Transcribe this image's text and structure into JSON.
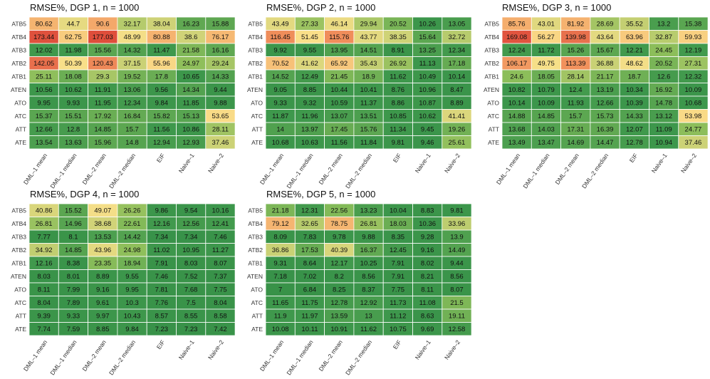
{
  "chart_data": [
    {
      "type": "heatmap",
      "title": "RMSE%, DGP 1, n = 1000",
      "rows": [
        "ATB5",
        "ATB4",
        "ATB3",
        "ATB2",
        "ATB1",
        "ATEN",
        "ATO",
        "ATC",
        "ATT",
        "ATE"
      ],
      "columns": [
        "DML–1 mean",
        "DML–1 median",
        "DML–2 mean",
        "DML–2 median",
        "EIF",
        "Naive–1",
        "Naive–2"
      ],
      "values": [
        [
          80.62,
          44.7,
          90.6,
          32.17,
          38.04,
          16.23,
          15.88
        ],
        [
          173.44,
          62.75,
          177.03,
          48.99,
          80.88,
          38.6,
          76.17
        ],
        [
          12.02,
          11.98,
          15.56,
          14.32,
          11.47,
          21.58,
          16.16
        ],
        [
          142.05,
          50.39,
          120.43,
          37.15,
          55.96,
          24.97,
          29.24
        ],
        [
          25.11,
          18.08,
          29.3,
          19.52,
          17.8,
          10.65,
          14.33
        ],
        [
          10.56,
          10.62,
          11.91,
          13.06,
          9.56,
          14.34,
          9.44
        ],
        [
          9.95,
          9.93,
          11.95,
          12.34,
          9.84,
          11.85,
          9.88
        ],
        [
          15.37,
          15.51,
          17.92,
          16.84,
          15.82,
          15.13,
          53.65
        ],
        [
          12.66,
          12.8,
          14.85,
          15.7,
          11.56,
          10.86,
          28.11
        ],
        [
          13.54,
          13.63,
          15.96,
          14.8,
          12.94,
          12.93,
          37.46
        ]
      ]
    },
    {
      "type": "heatmap",
      "title": "RMSE%, DGP 2, n = 1000",
      "rows": [
        "ATB5",
        "ATB4",
        "ATB3",
        "ATB2",
        "ATB1",
        "ATEN",
        "ATO",
        "ATC",
        "ATT",
        "ATE"
      ],
      "columns": [
        "DML–1 mean",
        "DML–1 median",
        "DML–2 mean",
        "DML–2 median",
        "EIF",
        "Naive–1",
        "Naive–2"
      ],
      "values": [
        [
          43.49,
          27.33,
          46.14,
          29.94,
          20.52,
          10.26,
          13.05
        ],
        [
          116.45,
          51.45,
          115.76,
          43.77,
          38.35,
          15.64,
          32.72
        ],
        [
          9.92,
          9.55,
          13.95,
          14.51,
          8.91,
          13.25,
          12.34
        ],
        [
          70.52,
          41.62,
          65.92,
          35.43,
          26.92,
          11.13,
          17.18
        ],
        [
          14.52,
          12.49,
          21.45,
          18.9,
          11.62,
          10.49,
          10.14
        ],
        [
          9.05,
          8.85,
          10.44,
          10.41,
          8.76,
          10.96,
          8.47
        ],
        [
          9.33,
          9.32,
          10.59,
          11.37,
          8.86,
          10.87,
          8.89
        ],
        [
          11.87,
          11.96,
          13.07,
          13.51,
          10.85,
          10.62,
          41.41
        ],
        [
          14,
          13.97,
          17.45,
          15.76,
          11.34,
          9.45,
          19.26
        ],
        [
          10.68,
          10.63,
          11.56,
          11.84,
          9.81,
          9.46,
          25.61
        ]
      ]
    },
    {
      "type": "heatmap",
      "title": "RMSE%, DGP 3, n = 1000",
      "rows": [
        "ATB5",
        "ATB4",
        "ATB3",
        "ATB2",
        "ATB1",
        "ATEN",
        "ATO",
        "ATC",
        "ATT",
        "ATE"
      ],
      "columns": [
        "DML–1 mean",
        "DML–1 median",
        "DML–2 mean",
        "DML–2 median",
        "EIF",
        "Naive–1",
        "Naive–2"
      ],
      "values": [
        [
          85.76,
          43.01,
          81.92,
          28.69,
          35.52,
          13.2,
          15.38
        ],
        [
          169.08,
          56.27,
          139.98,
          43.64,
          63.96,
          32.87,
          59.93
        ],
        [
          12.24,
          11.72,
          15.26,
          15.67,
          12.21,
          24.45,
          12.19
        ],
        [
          106.17,
          49.75,
          113.39,
          36.88,
          48.62,
          20.52,
          27.31
        ],
        [
          24.6,
          18.05,
          28.14,
          21.17,
          18.7,
          12.6,
          12.32
        ],
        [
          10.82,
          10.79,
          12.4,
          13.19,
          10.34,
          16.92,
          10.09
        ],
        [
          10.14,
          10.09,
          11.93,
          12.66,
          10.39,
          14.78,
          10.68
        ],
        [
          14.88,
          14.85,
          15.7,
          15.73,
          14.33,
          13.12,
          53.98
        ],
        [
          13.68,
          14.03,
          17.31,
          16.39,
          12.07,
          11.09,
          24.77
        ],
        [
          13.49,
          13.47,
          14.69,
          14.47,
          12.78,
          10.94,
          37.46
        ]
      ]
    },
    {
      "type": "heatmap",
      "title": "RMSE%, DGP 4, n = 1000",
      "rows": [
        "ATB5",
        "ATB4",
        "ATB3",
        "ATB2",
        "ATB1",
        "ATEN",
        "ATO",
        "ATC",
        "ATT",
        "ATE"
      ],
      "columns": [
        "DML–1 mean",
        "DML–1 median",
        "DML–2 mean",
        "DML–2 median",
        "EIF",
        "Naive–1",
        "Naive–2"
      ],
      "values": [
        [
          40.86,
          15.52,
          49.07,
          26.26,
          9.86,
          9.54,
          10.16
        ],
        [
          26.81,
          14.96,
          38.68,
          22.61,
          12.16,
          12.56,
          12.41
        ],
        [
          7.77,
          8.1,
          13.53,
          14.42,
          7.34,
          7.34,
          7.46
        ],
        [
          34.92,
          14.85,
          43.96,
          24.98,
          11.02,
          10.95,
          11.27
        ],
        [
          12.16,
          8.38,
          23.35,
          18.94,
          7.91,
          8.03,
          8.07
        ],
        [
          8.03,
          8.01,
          8.89,
          9.55,
          7.46,
          7.52,
          7.37
        ],
        [
          8.11,
          7.99,
          9.16,
          9.95,
          7.81,
          7.68,
          7.75
        ],
        [
          8.04,
          7.89,
          9.61,
          10.3,
          7.76,
          7.5,
          8.04
        ],
        [
          9.39,
          9.33,
          9.97,
          10.43,
          8.57,
          8.55,
          8.58
        ],
        [
          7.74,
          7.59,
          8.85,
          9.84,
          7.23,
          7.23,
          7.42
        ]
      ]
    },
    {
      "type": "heatmap",
      "title": "RMSE%, DGP 5, n = 1000",
      "rows": [
        "ATB5",
        "ATB4",
        "ATB3",
        "ATB2",
        "ATB1",
        "ATEN",
        "ATO",
        "ATC",
        "ATT",
        "ATE"
      ],
      "columns": [
        "DML–1 mean",
        "DML–1 median",
        "DML–2 mean",
        "DML–2 median",
        "EIF",
        "Naive–1",
        "Naive–2"
      ],
      "values": [
        [
          21.18,
          12.31,
          22.56,
          13.23,
          10.04,
          8.83,
          9.81
        ],
        [
          79.12,
          32.65,
          78.75,
          26.81,
          18.03,
          10.36,
          33.96
        ],
        [
          8.09,
          7.83,
          9.78,
          9.88,
          8.35,
          9.28,
          13.9
        ],
        [
          36.86,
          17.53,
          40.39,
          16.37,
          12.45,
          9.16,
          14.49
        ],
        [
          9.31,
          8.64,
          12.17,
          10.25,
          7.91,
          8.02,
          9.44
        ],
        [
          7.18,
          7.02,
          8.2,
          8.56,
          7.91,
          8.21,
          8.56
        ],
        [
          7,
          6.84,
          8.25,
          8.37,
          7.75,
          8.11,
          8.07
        ],
        [
          11.65,
          11.75,
          12.78,
          12.92,
          11.73,
          11.08,
          21.5
        ],
        [
          11.9,
          11.97,
          13.59,
          13,
          11.12,
          8.63,
          19.11
        ],
        [
          10.08,
          10.11,
          10.91,
          11.62,
          10.75,
          9.69,
          12.58
        ]
      ]
    }
  ]
}
